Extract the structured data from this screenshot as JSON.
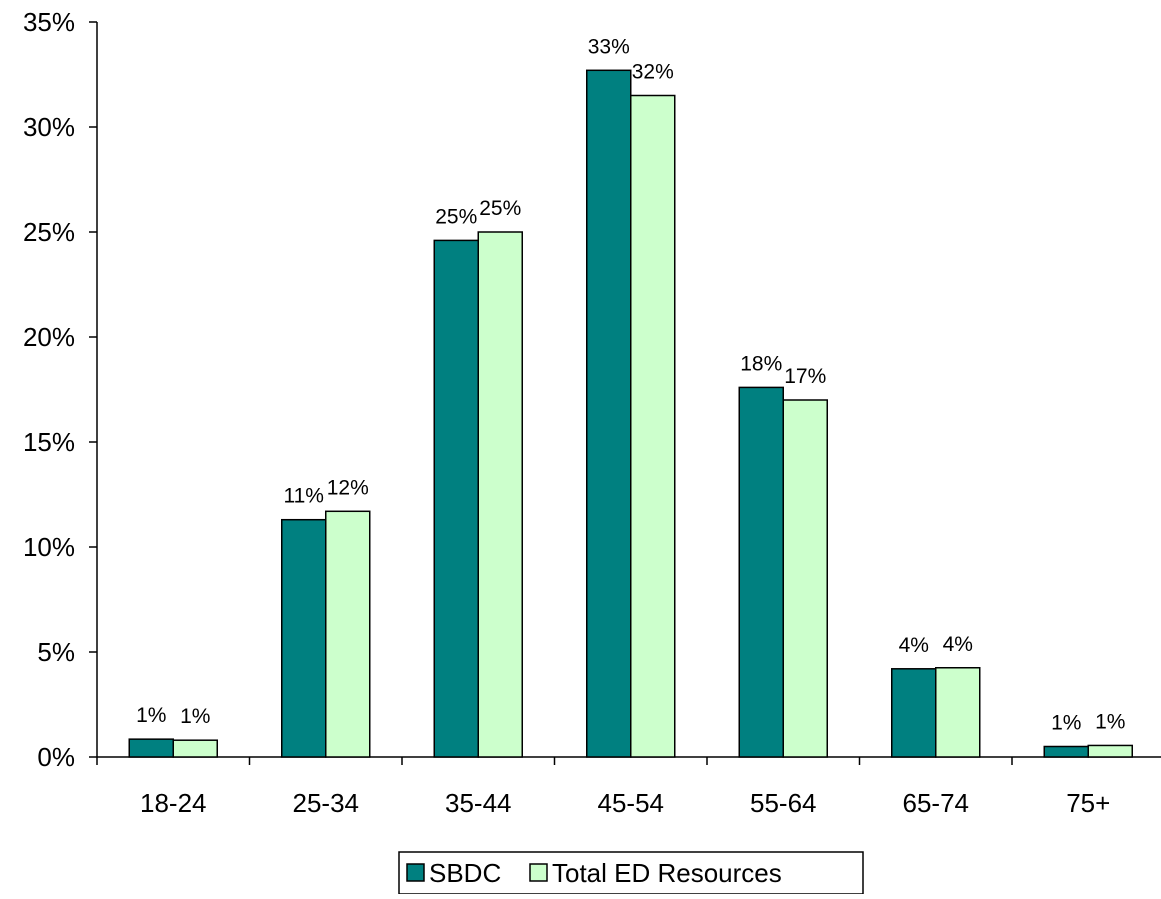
{
  "chart_data": {
    "type": "bar",
    "title": "",
    "xlabel": "",
    "ylabel": "",
    "categories": [
      "18-24",
      "25-34",
      "35-44",
      "45-54",
      "55-64",
      "65-74",
      "75+"
    ],
    "series": [
      {
        "name": "SBDC",
        "color": "#008080",
        "values": [
          0.85,
          11.3,
          24.6,
          32.7,
          17.6,
          4.2,
          0.5
        ],
        "labels": [
          "1%",
          "11%",
          "25%",
          "33%",
          "18%",
          "4%",
          "1%"
        ]
      },
      {
        "name": "Total ED Resources",
        "color": "#CCFFCC",
        "values": [
          0.8,
          11.7,
          25.0,
          31.5,
          17.0,
          4.25,
          0.55
        ],
        "labels": [
          "1%",
          "12%",
          "25%",
          "32%",
          "17%",
          "4%",
          "1%"
        ]
      }
    ],
    "ylim": [
      0,
      35
    ],
    "yticks": [
      0,
      5,
      10,
      15,
      20,
      25,
      30,
      35
    ],
    "ytick_labels": [
      "0%",
      "5%",
      "10%",
      "15%",
      "20%",
      "25%",
      "30%",
      "35%"
    ],
    "grid": false,
    "legend_position": "bottom"
  }
}
